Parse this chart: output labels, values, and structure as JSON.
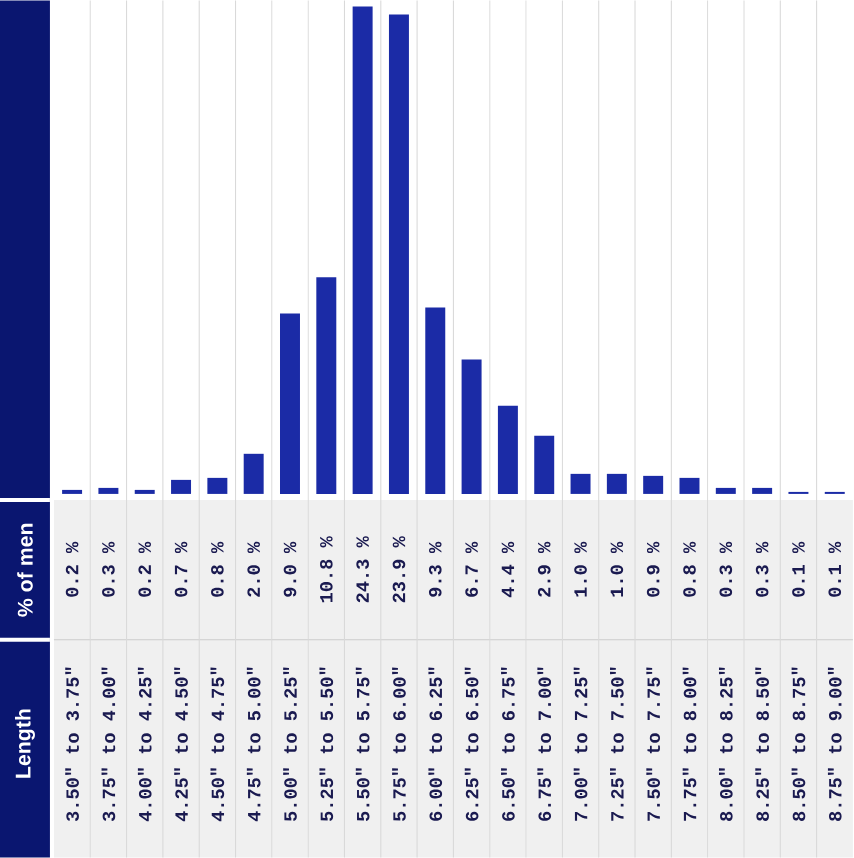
{
  "chart_data": {
    "type": "bar",
    "annotations": [
      "Length"
    ],
    "ylabel": "% of men",
    "color": "#1b2ba6",
    "categories": [
      "3.50\" to 3.75\"",
      "3.75\" to 4.00\"",
      "4.00\" to 4.25\"",
      "4.25\" to 4.50\"",
      "4.50\" to 4.75\"",
      "4.75\" to 5.00\"",
      "5.00\" to 5.25\"",
      "5.25\" to 5.50\"",
      "5.50\" to 5.75\"",
      "5.75\" to 6.00\"",
      "6.00\" to 6.25\"",
      "6.25\" to 6.50\"",
      "6.50\" to 6.75\"",
      "6.75\" to 7.00\"",
      "7.00\" to 7.25\"",
      "7.25\" to 7.50\"",
      "7.50\" to 7.75\"",
      "7.75\" to 8.00\"",
      "8.00\" to 8.25\"",
      "8.25\" to 8.50\"",
      "8.50\" to 8.75\"",
      "8.75\" to 9.00\""
    ],
    "values": [
      0.2,
      0.3,
      0.2,
      0.7,
      0.8,
      2.0,
      9.0,
      10.8,
      24.3,
      23.9,
      9.3,
      6.7,
      4.4,
      2.9,
      1.0,
      1.0,
      0.9,
      0.8,
      0.3,
      0.3,
      0.1,
      0.1
    ],
    "value_labels": [
      "0.2 %",
      "0.3 %",
      "0.2 %",
      "0.7 %",
      "0.8 %",
      "2.0 %",
      "9.0 %",
      "10.8 %",
      "24.3 %",
      "23.9 %",
      "9.3 %",
      "6.7 %",
      "4.4 %",
      "2.9 %",
      "1.0 %",
      "1.0 %",
      "0.9 %",
      "0.8 %",
      "0.3 %",
      "0.3 %",
      "0.1 %",
      "0.1 %"
    ]
  }
}
